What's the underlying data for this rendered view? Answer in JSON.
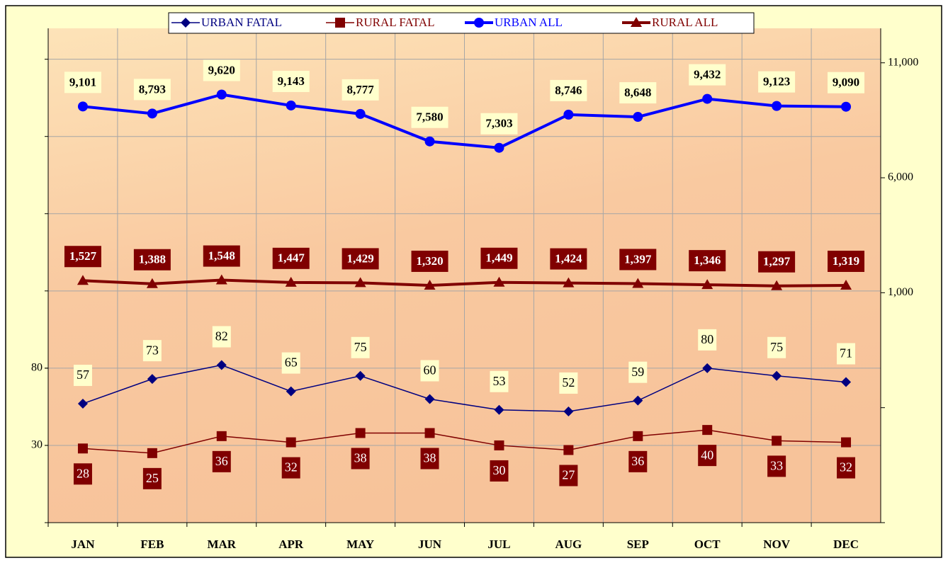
{
  "chart_data": {
    "type": "line",
    "categories": [
      "JAN",
      "FEB",
      "MAR",
      "APR",
      "MAY",
      "JUN",
      "JUL",
      "AUG",
      "SEP",
      "OCT",
      "NOV",
      "DEC"
    ],
    "series": [
      {
        "name": "URBAN FATAL",
        "color": "#000080",
        "marker": "diamond",
        "values": [
          57,
          73,
          82,
          65,
          75,
          60,
          53,
          52,
          59,
          80,
          75,
          71
        ]
      },
      {
        "name": "RURAL FATAL",
        "color": "#800000",
        "marker": "square",
        "values": [
          28,
          25,
          36,
          32,
          38,
          38,
          30,
          27,
          36,
          40,
          33,
          32
        ]
      },
      {
        "name": "URBAN ALL",
        "color": "#0000ff",
        "marker": "circle",
        "axis": "y2",
        "values": [
          9101,
          8793,
          9620,
          9143,
          8777,
          7580,
          7303,
          8746,
          8648,
          9432,
          9123,
          9090
        ],
        "value_labels": [
          "9,101",
          "8,793",
          "9,620",
          "9,143",
          "8,777",
          "7,580",
          "7,303",
          "8,746",
          "8,648",
          "9,432",
          "9,123",
          "9,090"
        ]
      },
      {
        "name": "RURAL ALL",
        "color": "#800000",
        "marker": "triangle",
        "axis": "y2",
        "values": [
          1527,
          1388,
          1548,
          1447,
          1429,
          1320,
          1449,
          1424,
          1397,
          1346,
          1297,
          1319
        ],
        "value_labels": [
          "1,527",
          "1,388",
          "1,548",
          "1,447",
          "1,429",
          "1,320",
          "1,449",
          "1,424",
          "1,397",
          "1,346",
          "1,297",
          "1,319"
        ]
      }
    ],
    "ylim": [
      -20,
      300
    ],
    "yticks": [
      30,
      80
    ],
    "y2lim": [
      -9000,
      12500
    ],
    "y2ticks": [
      {
        "value": 1000,
        "label": "1,000"
      },
      {
        "value": 6000,
        "label": "6,000"
      },
      {
        "value": 11000,
        "label": "11,000"
      }
    ],
    "grid": true,
    "legend": "top"
  }
}
